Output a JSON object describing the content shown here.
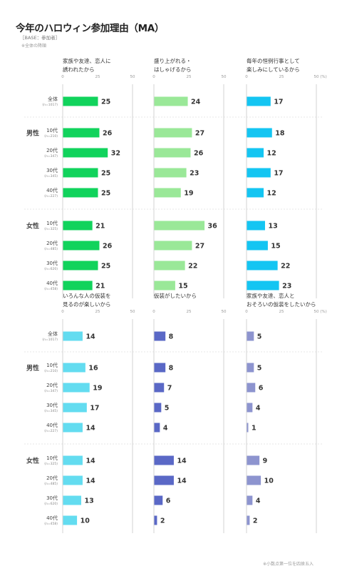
{
  "title": "今年のハロウィン参加理由（MA）",
  "base": "［BASE：参加者］",
  "note": "※全体の降順",
  "footnote": "※小数点第一位を四捨五入",
  "chart_data": {
    "type": "bar",
    "orientation": "horizontal",
    "xlim": [
      0,
      50
    ],
    "ticks": [
      "0",
      "25",
      "50"
    ],
    "unit": "(%)",
    "rows": [
      {
        "label": "全体",
        "n": "(n=1017)"
      },
      {
        "group": "男性",
        "label": "10代",
        "n": "(n=210)"
      },
      {
        "label": "20代",
        "n": "(n=347)"
      },
      {
        "label": "30代",
        "n": "(n=345)"
      },
      {
        "label": "40代",
        "n": "(n=227)"
      },
      {
        "group": "女性",
        "label": "10代",
        "n": "(n=325)"
      },
      {
        "label": "20代",
        "n": "(n=485)"
      },
      {
        "label": "30代",
        "n": "(n=620)"
      },
      {
        "label": "40代",
        "n": "(n=458)"
      }
    ],
    "panels": [
      {
        "title": [
          "家族や友達、恋人に",
          "誘われたから"
        ],
        "color": "#11d35c",
        "values": [
          25,
          26,
          32,
          25,
          25,
          21,
          26,
          25,
          21
        ]
      },
      {
        "title": [
          "盛り上がれる・",
          "はしゃげるから"
        ],
        "color": "#9ae898",
        "values": [
          24,
          27,
          26,
          23,
          19,
          36,
          27,
          22,
          15
        ]
      },
      {
        "title": [
          "毎年の恒例行事として",
          "楽しみにしているから"
        ],
        "color": "#14c5f2",
        "values": [
          17,
          18,
          12,
          17,
          12,
          13,
          15,
          22,
          23
        ]
      },
      {
        "title": [
          "いろんな人の仮装を",
          "見るのが楽しいから"
        ],
        "color": "#63dcf0",
        "values": [
          14,
          16,
          19,
          17,
          14,
          14,
          14,
          13,
          10
        ]
      },
      {
        "title": [
          "仮装がしたいから"
        ],
        "color": "#5a68c6",
        "values": [
          8,
          8,
          7,
          5,
          4,
          14,
          14,
          6,
          2
        ]
      },
      {
        "title": [
          "家族や友達、恋人と",
          "おそろいの仮装をしたいから"
        ],
        "color": "#8d94cf",
        "values": [
          5,
          5,
          6,
          4,
          1,
          9,
          10,
          4,
          2
        ]
      }
    ]
  }
}
